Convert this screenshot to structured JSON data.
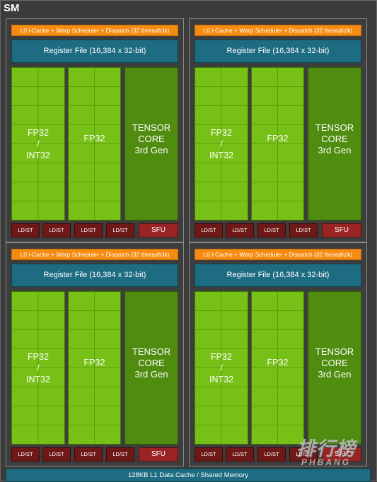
{
  "sm_label": "SM",
  "quadrants": [
    {
      "scheduler": "L0 i-Cache + Warp Scheduler + Dispatch (32 thread/clk)",
      "register_file": "Register File (16,384 x 32-bit)",
      "fp32_int32": [
        "FP32",
        "/",
        "INT32"
      ],
      "fp32": "FP32",
      "tensor_core": [
        "TENSOR",
        "CORE",
        "3rd Gen"
      ],
      "ldst": [
        "LD/ST",
        "LD/ST",
        "LD/ST",
        "LD/ST"
      ],
      "sfu": "SFU"
    },
    {
      "scheduler": "L0 i-Cache + Warp Scheduler + Dispatch (32 thread/clk)",
      "register_file": "Register File (16,384 x 32-bit)",
      "fp32_int32": [
        "FP32",
        "/",
        "INT32"
      ],
      "fp32": "FP32",
      "tensor_core": [
        "TENSOR",
        "CORE",
        "3rd Gen"
      ],
      "ldst": [
        "LD/ST",
        "LD/ST",
        "LD/ST",
        "LD/ST"
      ],
      "sfu": "SFU"
    },
    {
      "scheduler": "L0 i-Cache + Warp Scheduler + Dispatch (32 thread/clk)",
      "register_file": "Register File (16,384 x 32-bit)",
      "fp32_int32": [
        "FP32",
        "/",
        "INT32"
      ],
      "fp32": "FP32",
      "tensor_core": [
        "TENSOR",
        "CORE",
        "3rd Gen"
      ],
      "ldst": [
        "LD/ST",
        "LD/ST",
        "LD/ST",
        "LD/ST"
      ],
      "sfu": "SFU"
    },
    {
      "scheduler": "L0 i-Cache + Warp Scheduler + Dispatch (32 thread/clk)",
      "register_file": "Register File (16,384 x 32-bit)",
      "fp32_int32": [
        "FP32",
        "/",
        "INT32"
      ],
      "fp32": "FP32",
      "tensor_core": [
        "TENSOR",
        "CORE",
        "3rd Gen"
      ],
      "ldst": [
        "LD/ST",
        "LD/ST",
        "LD/ST",
        "LD/ST"
      ],
      "sfu": "SFU"
    }
  ],
  "l1_cache": "128KB L1 Data Cache / Shared Memory",
  "watermark": {
    "cn": "排行榜",
    "en": "PHBANG"
  },
  "colors": {
    "scheduler": "#f58b10",
    "register_file": "#1e6c82",
    "fp_core": "#77c015",
    "tensor_core": "#4f8c0f",
    "ldst": "#6e1818",
    "sfu": "#9a2424",
    "background": "#3a3a3a"
  }
}
